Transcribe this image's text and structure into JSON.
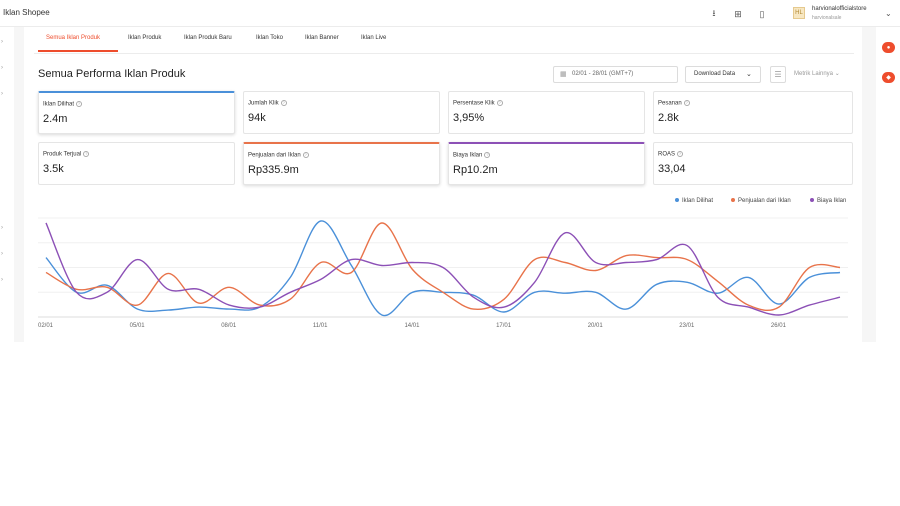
{
  "app": {
    "title": "Iklan Shopee"
  },
  "header": {
    "icons": [
      "download-icon",
      "grid-icon",
      "book-icon"
    ],
    "shop": {
      "logo_text": "HL",
      "name": "harvionalofficialstore",
      "user": "harvionalsale"
    }
  },
  "tabs": [
    {
      "label": "Semua Iklan Produk",
      "active": true
    },
    {
      "label": "Iklan Produk",
      "active": false
    },
    {
      "label": "Iklan Produk Baru",
      "active": false
    },
    {
      "label": "Iklan Toko",
      "active": false
    },
    {
      "label": "Iklan Banner",
      "active": false
    },
    {
      "label": "Iklan Live",
      "active": false
    }
  ],
  "section": {
    "title": "Semua Performa Iklan Produk",
    "date_range": "02/01 - 28/01 (GMT+7)",
    "download_label": "Download Data",
    "metric_label": "Metrik Lainnya"
  },
  "metrics": [
    {
      "label": "Iklan Dilihat",
      "value": "2.4m",
      "selected": "blue"
    },
    {
      "label": "Jumlah Klik",
      "value": "94k",
      "selected": ""
    },
    {
      "label": "Persentase Klik",
      "value": "3,95%",
      "selected": ""
    },
    {
      "label": "Pesanan",
      "value": "2.8k",
      "selected": ""
    },
    {
      "label": "Produk Terjual",
      "value": "3.5k",
      "selected": ""
    },
    {
      "label": "Penjualan dari Iklan",
      "value": "Rp335.9m",
      "selected": "orange"
    },
    {
      "label": "Biaya Iklan",
      "value": "Rp10.2m",
      "selected": "purple"
    },
    {
      "label": "ROAS",
      "value": "33,04",
      "selected": ""
    }
  ],
  "colors": {
    "accent": "#ee4d2d",
    "blue": "#4a90d9",
    "orange": "#e8734a",
    "purple": "#8c50b6"
  },
  "chart_data": {
    "type": "line",
    "x": [
      "02/01",
      "03/01",
      "04/01",
      "05/01",
      "06/01",
      "07/01",
      "08/01",
      "09/01",
      "10/01",
      "11/01",
      "12/01",
      "13/01",
      "14/01",
      "15/01",
      "16/01",
      "17/01",
      "18/01",
      "19/01",
      "20/01",
      "21/01",
      "22/01",
      "23/01",
      "24/01",
      "25/01",
      "26/01",
      "27/01",
      "28/01"
    ],
    "x_tick_labels": [
      "02/01",
      "05/01",
      "08/01",
      "11/01",
      "14/01",
      "17/01",
      "20/01",
      "23/01",
      "26/01"
    ],
    "grid": true,
    "legend": "top-right",
    "series": [
      {
        "name": "Iklan Dilihat",
        "color": "#4a90d9",
        "values": [
          60,
          25,
          32,
          8,
          7,
          10,
          8,
          10,
          40,
          97,
          52,
          2,
          25,
          25,
          22,
          5,
          25,
          24,
          25,
          8,
          33,
          35,
          24,
          40,
          13,
          40,
          45
        ]
      },
      {
        "name": "Penjualan dari Iklan",
        "color": "#e8734a",
        "values": [
          45,
          28,
          30,
          12,
          44,
          14,
          30,
          12,
          18,
          55,
          45,
          95,
          48,
          25,
          8,
          18,
          58,
          55,
          47,
          62,
          60,
          58,
          36,
          12,
          10,
          50,
          50
        ]
      },
      {
        "name": "Biaya Iklan",
        "color": "#8c50b6",
        "values": [
          95,
          25,
          25,
          58,
          28,
          28,
          12,
          10,
          25,
          38,
          58,
          52,
          55,
          50,
          20,
          10,
          35,
          85,
          55,
          55,
          58,
          72,
          20,
          10,
          2,
          12,
          20
        ]
      }
    ]
  }
}
